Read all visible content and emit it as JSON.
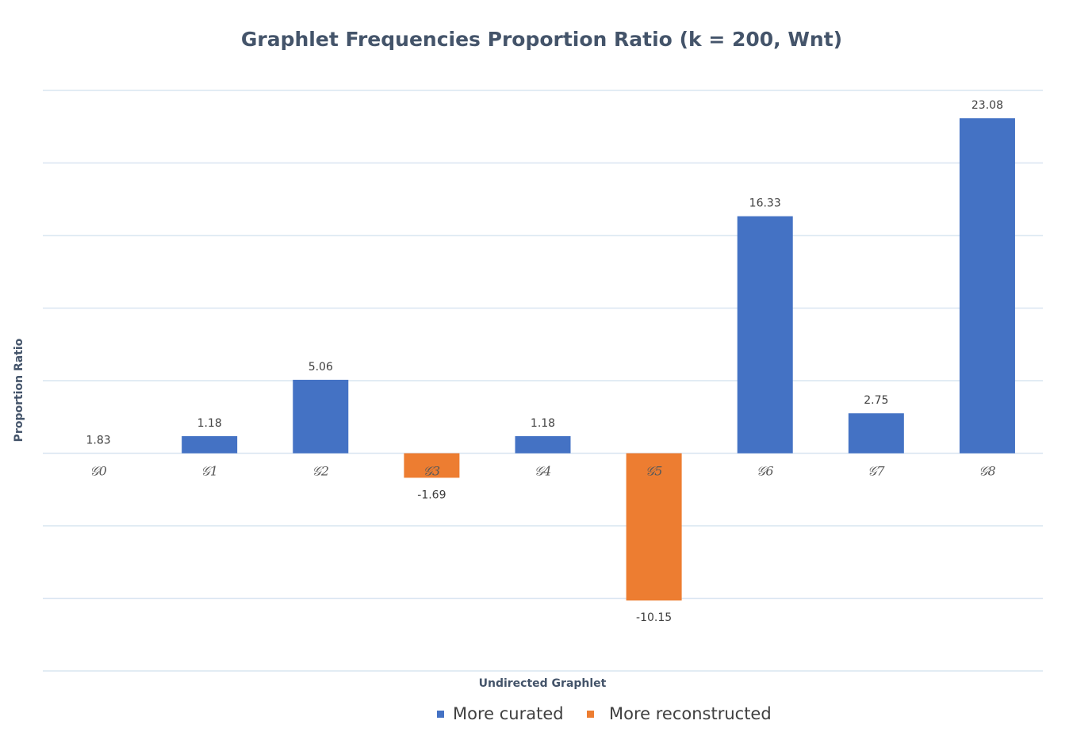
{
  "chart_data": {
    "type": "bar",
    "title": "Graphlet Frequencies Proportion Ratio (k = 200, Wnt)",
    "xlabel": "Undirected Graphlet",
    "ylabel": "Proportion Ratio",
    "categories": [
      "Ǥ0",
      "Ǥ1",
      "Ǥ2",
      "Ǥ3",
      "Ǥ4",
      "Ǥ5",
      "Ǥ6",
      "Ǥ7",
      "Ǥ8"
    ],
    "tick_labels": [
      "𝒢0",
      "𝒢1",
      "𝒢2",
      "𝒢3",
      "𝒢4",
      "𝒢5",
      "𝒢6",
      "𝒢7",
      "𝒢8"
    ],
    "series": [
      {
        "name": "More curated",
        "color": "#4472c4",
        "values": [
          1.83,
          1.18,
          5.06,
          null,
          1.18,
          null,
          16.33,
          2.75,
          23.08
        ]
      },
      {
        "name": "More reconstructed",
        "color": "#ed7d31",
        "values": [
          null,
          null,
          null,
          -1.69,
          null,
          -10.15,
          null,
          null,
          null
        ]
      }
    ],
    "data_labels": [
      "1.83",
      "1.18",
      "5.06",
      "-1.69",
      "1.18",
      "-10.15",
      "16.33",
      "2.75",
      "23.08"
    ],
    "ylim": [
      -15,
      25
    ],
    "grid": true,
    "legend": "bottom-center"
  }
}
